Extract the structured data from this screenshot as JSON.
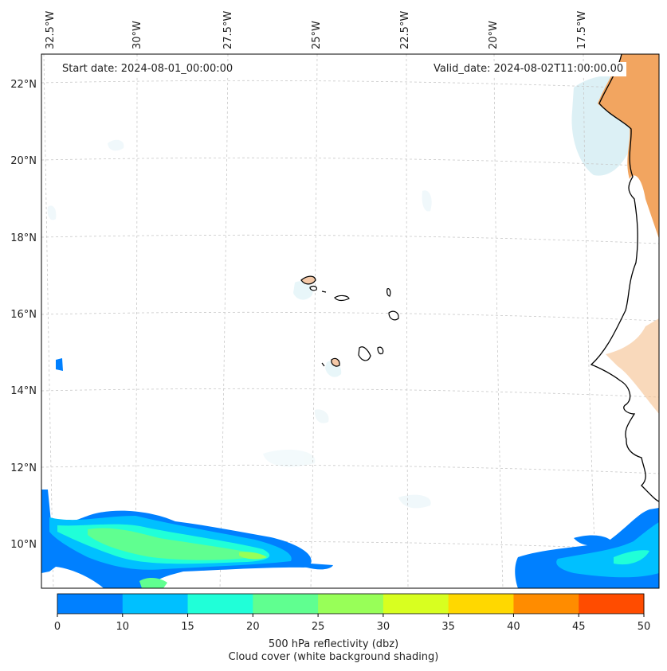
{
  "header": {
    "start_date": "Start date: 2024-08-01_00:00:00",
    "valid_date": "Valid_date: 2024-08-02T11:00:00.00"
  },
  "axes": {
    "lon_labels": [
      "32.5°W",
      "30°W",
      "27.5°W",
      "25°W",
      "22.5°W",
      "20°W",
      "17.5°W"
    ],
    "lat_labels": [
      "22°N",
      "20°N",
      "18°N",
      "16°N",
      "14°N",
      "12°N",
      "10°N"
    ]
  },
  "colorbar": {
    "ticks": [
      "0",
      "10",
      "15",
      "20",
      "25",
      "30",
      "35",
      "40",
      "45",
      "50"
    ],
    "colors": [
      "#0080ff",
      "#00c0ff",
      "#20ffd8",
      "#60ff90",
      "#98ff58",
      "#d8ff20",
      "#ffd800",
      "#ff8c00",
      "#ff4c00"
    ],
    "label_line1": "500 hPa reflectivity (dbz)",
    "label_line2": "Cloud cover (white background shading)"
  },
  "map_colors": {
    "land_shade": "#f2a560",
    "cloud_shade": "#bfe3ec",
    "coast": "#000000"
  }
}
